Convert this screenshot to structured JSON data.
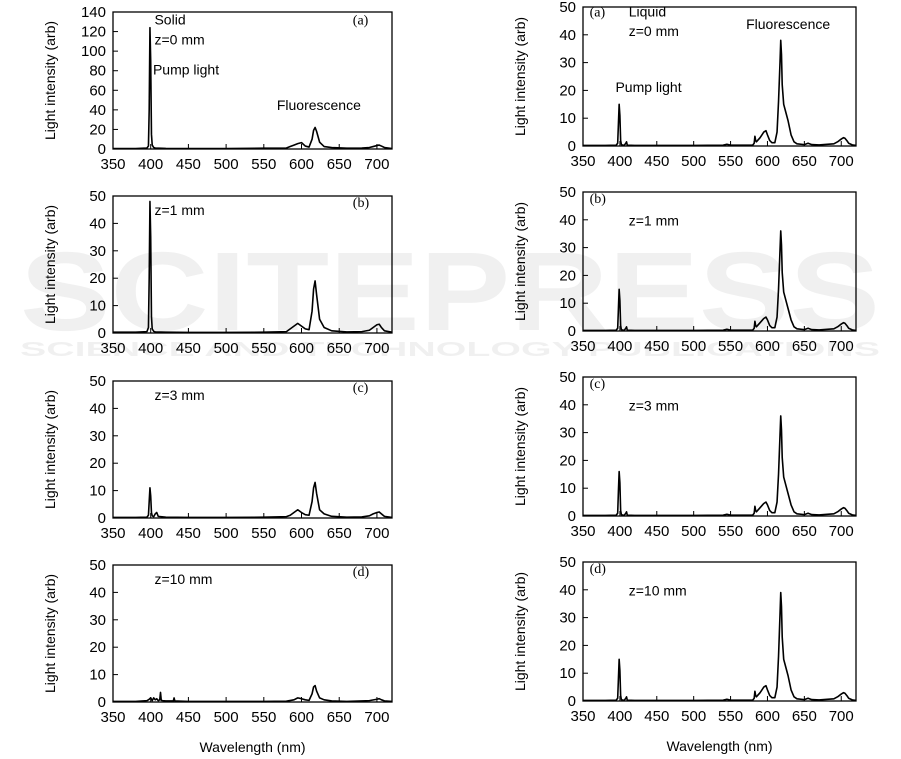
{
  "watermark": {
    "main": "SCITEPRESS",
    "sub": "SCIENCE AND TECHNOLOGY PUBLICATIONS"
  },
  "chart_data": [
    {
      "type": "line",
      "panel": "(a)",
      "title": "Solid",
      "annotation": "z=0 mm",
      "labels": [
        "Pump light",
        "Fluorescence"
      ],
      "xlabel": "",
      "ylabel": "Light intensity (arb)",
      "xlim": [
        350,
        720
      ],
      "ylim": [
        0,
        140
      ],
      "xticks": [
        350,
        400,
        450,
        500,
        550,
        600,
        650,
        700
      ],
      "yticks": [
        0,
        20,
        40,
        60,
        80,
        100,
        120,
        140
      ],
      "series": [
        {
          "x": [
            350,
            380,
            395,
            397,
            398,
            399,
            400,
            401,
            402,
            404,
            406,
            420,
            450,
            500,
            550,
            580,
            585,
            590,
            595,
            600,
            605,
            610,
            614,
            616,
            618,
            620,
            624,
            630,
            640,
            660,
            680,
            690,
            695,
            700,
            703,
            706,
            710,
            720
          ],
          "y": [
            0.5,
            0.5,
            1,
            3,
            40,
            124,
            90,
            15,
            4,
            1.5,
            1,
            0.6,
            0.5,
            0.5,
            0.8,
            1,
            2.5,
            4,
            5.5,
            6.5,
            3,
            2,
            10,
            19,
            22,
            18,
            7,
            2.5,
            1.5,
            0.8,
            1,
            1.5,
            2.5,
            3.5,
            4,
            3,
            1.5,
            0.5
          ]
        }
      ]
    },
    {
      "type": "line",
      "panel": "(b)",
      "annotation": "z=1 mm",
      "xlabel": "",
      "ylabel": "Light intensity (arb)",
      "xlim": [
        350,
        720
      ],
      "ylim": [
        0,
        50
      ],
      "xticks": [
        350,
        400,
        450,
        500,
        550,
        600,
        650,
        700
      ],
      "yticks": [
        0,
        10,
        20,
        30,
        40,
        50
      ],
      "series": [
        {
          "x": [
            350,
            380,
            395,
            397,
            398,
            399,
            400,
            401,
            402,
            404,
            406,
            420,
            450,
            500,
            550,
            580,
            585,
            590,
            595,
            600,
            605,
            610,
            614,
            616,
            618,
            620,
            624,
            630,
            640,
            660,
            680,
            690,
            695,
            700,
            703,
            706,
            710,
            720
          ],
          "y": [
            0.3,
            0.3,
            0.5,
            2,
            20,
            48,
            35,
            6,
            1.5,
            0.6,
            0.4,
            0.3,
            0.2,
            0.2,
            0.3,
            0.5,
            1.5,
            2.5,
            3.5,
            2.5,
            1.5,
            1.2,
            8,
            16,
            19,
            14,
            5,
            2,
            0.8,
            0.4,
            0.5,
            1,
            2,
            3,
            3.2,
            2,
            0.8,
            0.3
          ]
        }
      ]
    },
    {
      "type": "line",
      "panel": "(c)",
      "annotation": "z=3 mm",
      "xlabel": "",
      "ylabel": "Light intensity (arb)",
      "xlim": [
        350,
        720
      ],
      "ylim": [
        0,
        50
      ],
      "xticks": [
        350,
        400,
        450,
        500,
        550,
        600,
        650,
        700
      ],
      "yticks": [
        0,
        10,
        20,
        30,
        40,
        50
      ],
      "series": [
        {
          "x": [
            350,
            380,
            395,
            397,
            398,
            399,
            400,
            401,
            402,
            404,
            406,
            408,
            410,
            420,
            450,
            500,
            550,
            580,
            585,
            590,
            595,
            600,
            605,
            610,
            614,
            616,
            618,
            620,
            624,
            630,
            640,
            660,
            680,
            690,
            695,
            700,
            703,
            706,
            710,
            720
          ],
          "y": [
            0.2,
            0.2,
            0.3,
            1,
            6,
            11,
            8,
            2,
            0.8,
            0.5,
            1.5,
            2,
            0.6,
            0.3,
            0.2,
            0.2,
            0.3,
            0.5,
            1,
            2,
            3,
            2,
            1.2,
            1,
            6,
            11,
            13,
            9,
            3,
            1.5,
            0.6,
            0.3,
            0.4,
            0.8,
            1.5,
            2,
            2.2,
            1.5,
            0.6,
            0.2
          ]
        }
      ]
    },
    {
      "type": "line",
      "panel": "(d)",
      "annotation": "z=10 mm",
      "xlabel": "Wavelength (nm)",
      "ylabel": "Light intensity (arb)",
      "xlim": [
        350,
        720
      ],
      "ylim": [
        0,
        50
      ],
      "xticks": [
        350,
        400,
        450,
        500,
        550,
        600,
        650,
        700
      ],
      "yticks": [
        0,
        10,
        20,
        30,
        40,
        50
      ],
      "series": [
        {
          "x": [
            350,
            380,
            395,
            398,
            400,
            402,
            404,
            406,
            408,
            410,
            412,
            413,
            414,
            416,
            420,
            430,
            431,
            432,
            440,
            450,
            500,
            550,
            580,
            590,
            595,
            600,
            605,
            610,
            614,
            616,
            618,
            620,
            624,
            630,
            640,
            660,
            690,
            700,
            703,
            706,
            710,
            720
          ],
          "y": [
            0.2,
            0.2,
            0.5,
            1,
            1.5,
            0.5,
            1.5,
            0.8,
            1.2,
            0.5,
            0.8,
            3.5,
            0.6,
            0.5,
            0.4,
            0.4,
            1.5,
            0.4,
            0.3,
            0.2,
            0.2,
            0.2,
            0.3,
            0.8,
            1.5,
            1.2,
            0.8,
            0.6,
            3,
            5.5,
            6,
            4,
            1.5,
            0.8,
            0.4,
            0.2,
            0.5,
            1,
            1.2,
            0.8,
            0.4,
            0.2
          ]
        }
      ]
    },
    {
      "type": "line",
      "panel": "(a)",
      "title": "Liquid",
      "annotation": "z=0 mm",
      "labels": [
        "Pump light",
        "Fluorescence"
      ],
      "xlabel": "",
      "ylabel": "Light intensity (arb)",
      "xlim": [
        350,
        720
      ],
      "ylim": [
        0,
        50
      ],
      "xticks": [
        350,
        400,
        450,
        500,
        550,
        600,
        650,
        700
      ],
      "yticks": [
        0,
        10,
        20,
        30,
        40,
        50
      ],
      "series": [
        {
          "x": [
            350,
            380,
            395,
            397,
            398,
            399,
            400,
            401,
            402,
            404,
            406,
            408,
            409,
            410,
            420,
            450,
            500,
            540,
            545,
            550,
            580,
            582,
            583,
            584,
            585,
            590,
            595,
            598,
            600,
            603,
            606,
            610,
            613,
            615,
            617,
            618,
            619,
            620,
            622,
            625,
            628,
            632,
            636,
            640,
            650,
            655,
            660,
            670,
            690,
            695,
            700,
            703,
            705,
            708,
            710,
            715,
            720
          ],
          "y": [
            0.2,
            0.2,
            0.3,
            1,
            8,
            15,
            11,
            2,
            0.5,
            0.3,
            0.3,
            1,
            1.5,
            0.3,
            0.2,
            0.2,
            0.2,
            0.3,
            0.6,
            0.3,
            0.3,
            1,
            3.5,
            2,
            1.5,
            3,
            5,
            5.5,
            4,
            2,
            1.2,
            1.2,
            5,
            16,
            30,
            38,
            33,
            22,
            15,
            12,
            9,
            4,
            1.5,
            0.8,
            0.5,
            1,
            0.5,
            0.4,
            0.8,
            1.5,
            2.5,
            3,
            2.8,
            1.8,
            1,
            0.4,
            0.2
          ]
        }
      ]
    },
    {
      "type": "line",
      "panel": "(b)",
      "annotation": "z=1 mm",
      "xlabel": "",
      "ylabel": "Light intensity (arb)",
      "xlim": [
        350,
        720
      ],
      "ylim": [
        0,
        50
      ],
      "xticks": [
        350,
        400,
        450,
        500,
        550,
        600,
        650,
        700
      ],
      "yticks": [
        0,
        10,
        20,
        30,
        40,
        50
      ],
      "series": [
        {
          "x": [
            350,
            380,
            395,
            397,
            398,
            399,
            400,
            401,
            402,
            404,
            406,
            408,
            409,
            410,
            420,
            450,
            500,
            540,
            545,
            550,
            580,
            582,
            583,
            584,
            585,
            590,
            595,
            598,
            600,
            603,
            606,
            610,
            613,
            615,
            617,
            618,
            619,
            620,
            622,
            625,
            628,
            632,
            636,
            640,
            650,
            655,
            660,
            670,
            690,
            695,
            700,
            703,
            705,
            708,
            710,
            715,
            720
          ],
          "y": [
            0.2,
            0.2,
            0.3,
            1,
            8,
            15,
            11,
            2,
            0.5,
            0.3,
            0.3,
            1,
            1.5,
            0.3,
            0.2,
            0.2,
            0.2,
            0.3,
            0.6,
            0.3,
            0.3,
            1,
            3.5,
            2,
            1.5,
            3,
            4.5,
            5,
            4,
            2,
            1.2,
            1.2,
            5,
            15,
            29,
            36,
            31,
            21,
            14,
            11,
            8,
            4,
            1.5,
            0.8,
            0.5,
            1,
            0.5,
            0.4,
            0.8,
            1.5,
            2.5,
            3,
            2.8,
            1.8,
            1,
            0.4,
            0.2
          ]
        }
      ]
    },
    {
      "type": "line",
      "panel": "(c)",
      "annotation": "z=3 mm",
      "xlabel": "",
      "ylabel": "Light intensity (arb)",
      "xlim": [
        350,
        720
      ],
      "ylim": [
        0,
        50
      ],
      "xticks": [
        350,
        400,
        450,
        500,
        550,
        600,
        650,
        700
      ],
      "yticks": [
        0,
        10,
        20,
        30,
        40,
        50
      ],
      "series": [
        {
          "x": [
            350,
            380,
            395,
            397,
            398,
            399,
            400,
            401,
            402,
            404,
            406,
            408,
            409,
            410,
            420,
            450,
            500,
            540,
            545,
            550,
            580,
            582,
            583,
            584,
            585,
            590,
            595,
            598,
            600,
            603,
            606,
            610,
            613,
            615,
            617,
            618,
            619,
            620,
            622,
            625,
            628,
            632,
            636,
            640,
            650,
            655,
            660,
            670,
            690,
            695,
            700,
            703,
            705,
            708,
            710,
            715,
            720
          ],
          "y": [
            0.2,
            0.2,
            0.3,
            1,
            9,
            16,
            12,
            2,
            0.5,
            0.3,
            0.3,
            1,
            1.5,
            0.3,
            0.2,
            0.2,
            0.2,
            0.3,
            0.6,
            0.3,
            0.3,
            1,
            3.5,
            2,
            1.5,
            3,
            4.5,
            5,
            4,
            2,
            1.2,
            1.2,
            5,
            15,
            29,
            36,
            31,
            21,
            14,
            11,
            8,
            4,
            1.5,
            0.8,
            0.5,
            1,
            0.5,
            0.4,
            0.8,
            1.5,
            2.5,
            3,
            2.8,
            1.8,
            1,
            0.4,
            0.2
          ]
        }
      ]
    },
    {
      "type": "line",
      "panel": "(d)",
      "annotation": "z=10 mm",
      "xlabel": "Wavelength (nm)",
      "ylabel": "Light intensity (arb)",
      "xlim": [
        350,
        720
      ],
      "ylim": [
        0,
        50
      ],
      "xticks": [
        350,
        400,
        450,
        500,
        550,
        600,
        650,
        700
      ],
      "yticks": [
        0,
        10,
        20,
        30,
        40,
        50
      ],
      "series": [
        {
          "x": [
            350,
            380,
            395,
            397,
            398,
            399,
            400,
            401,
            402,
            404,
            406,
            408,
            409,
            410,
            420,
            450,
            500,
            540,
            545,
            550,
            580,
            582,
            583,
            584,
            585,
            590,
            595,
            598,
            600,
            603,
            606,
            610,
            613,
            615,
            617,
            618,
            619,
            620,
            622,
            625,
            628,
            632,
            636,
            640,
            650,
            655,
            660,
            670,
            690,
            695,
            700,
            703,
            705,
            708,
            710,
            715,
            720
          ],
          "y": [
            0.2,
            0.2,
            0.3,
            1,
            8,
            15,
            11,
            2,
            0.5,
            0.3,
            0.3,
            1,
            1.5,
            0.3,
            0.2,
            0.2,
            0.2,
            0.3,
            0.6,
            0.3,
            0.3,
            1,
            3.5,
            2,
            1.5,
            3,
            5,
            5.5,
            4,
            2,
            1.2,
            1.2,
            5,
            16,
            31,
            39,
            34,
            23,
            15,
            12,
            9,
            4,
            1.5,
            0.8,
            0.5,
            1,
            0.5,
            0.4,
            0.8,
            1.5,
            2.5,
            3,
            2.8,
            1.8,
            1,
            0.4,
            0.2
          ]
        }
      ]
    }
  ]
}
